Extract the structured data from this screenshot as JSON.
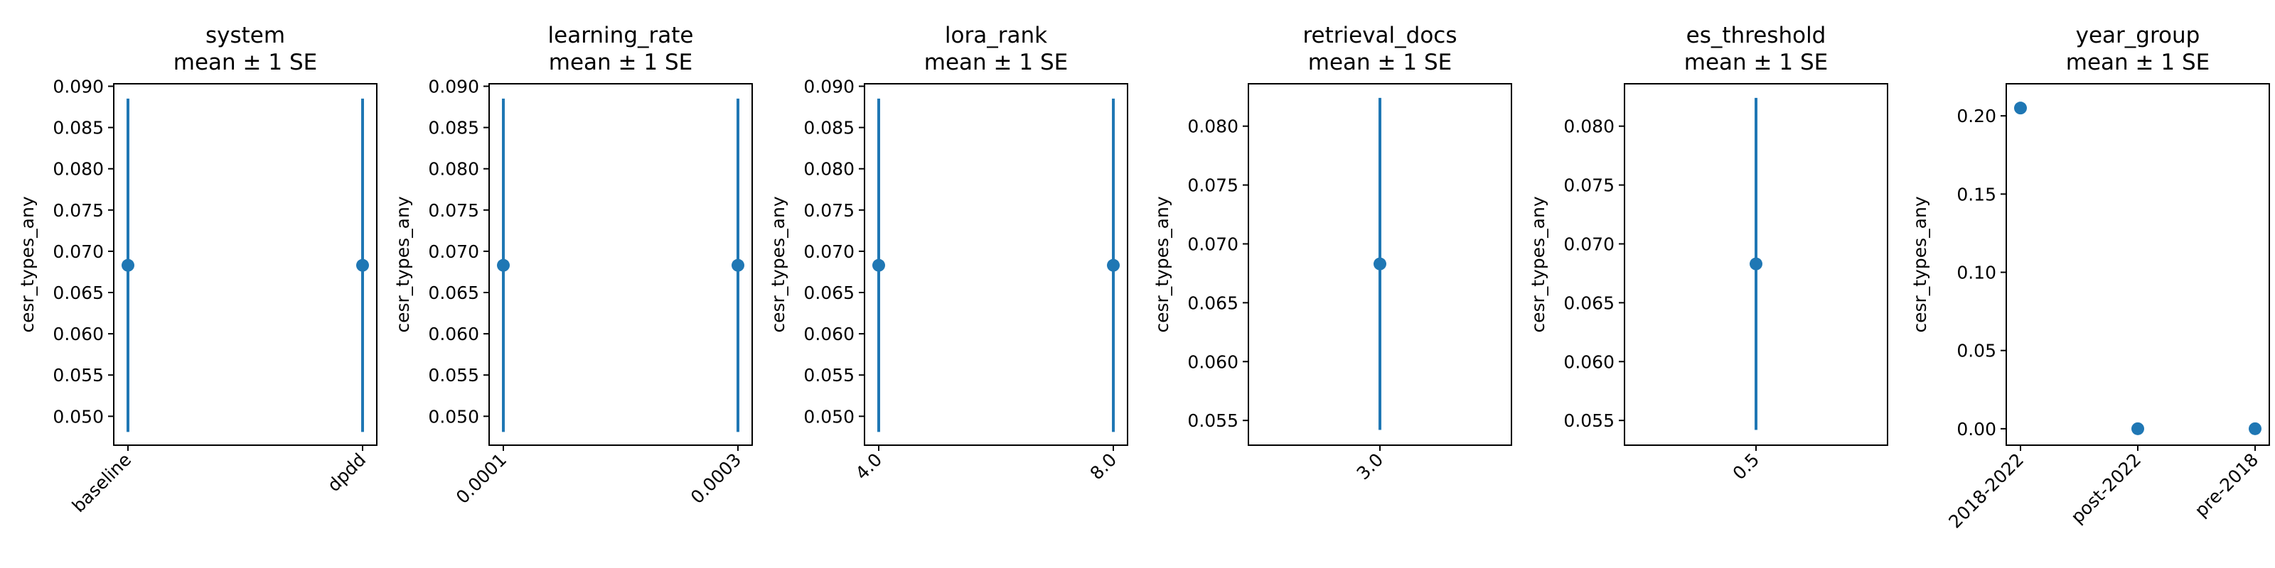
{
  "colors": {
    "series": "#1f77b4",
    "axis": "#000000",
    "background": "#ffffff"
  },
  "chart_data": [
    {
      "type": "scatter",
      "title": "system\nmean ± 1 SE",
      "xlabel": "",
      "ylabel": "cesr_types_any",
      "categories": [
        "baseline",
        "dpdd"
      ],
      "values": [
        0.0683,
        0.0683
      ],
      "error": [
        0.0202,
        0.0202
      ],
      "ylim": [
        0.0465,
        0.0903
      ],
      "yticks": [
        0.05,
        0.055,
        0.06,
        0.065,
        0.07,
        0.075,
        0.08,
        0.085,
        0.09
      ],
      "ytick_labels": [
        "0.050",
        "0.055",
        "0.060",
        "0.065",
        "0.070",
        "0.075",
        "0.080",
        "0.085",
        "0.090"
      ],
      "grid": false,
      "legend": "none"
    },
    {
      "type": "scatter",
      "title": "learning_rate\nmean ± 1 SE",
      "xlabel": "",
      "ylabel": "cesr_types_any",
      "categories": [
        "0.0001",
        "0.0003"
      ],
      "values": [
        0.0683,
        0.0683
      ],
      "error": [
        0.0202,
        0.0202
      ],
      "ylim": [
        0.0465,
        0.0903
      ],
      "yticks": [
        0.05,
        0.055,
        0.06,
        0.065,
        0.07,
        0.075,
        0.08,
        0.085,
        0.09
      ],
      "ytick_labels": [
        "0.050",
        "0.055",
        "0.060",
        "0.065",
        "0.070",
        "0.075",
        "0.080",
        "0.085",
        "0.090"
      ],
      "grid": false,
      "legend": "none"
    },
    {
      "type": "scatter",
      "title": "lora_rank\nmean ± 1 SE",
      "xlabel": "",
      "ylabel": "cesr_types_any",
      "categories": [
        "4.0",
        "8.0"
      ],
      "values": [
        0.0683,
        0.0683
      ],
      "error": [
        0.0202,
        0.0202
      ],
      "ylim": [
        0.0465,
        0.0903
      ],
      "yticks": [
        0.05,
        0.055,
        0.06,
        0.065,
        0.07,
        0.075,
        0.08,
        0.085,
        0.09
      ],
      "ytick_labels": [
        "0.050",
        "0.055",
        "0.060",
        "0.065",
        "0.070",
        "0.075",
        "0.080",
        "0.085",
        "0.090"
      ],
      "grid": false,
      "legend": "none"
    },
    {
      "type": "scatter",
      "title": "retrieval_docs\nmean ± 1 SE",
      "xlabel": "",
      "ylabel": "cesr_types_any",
      "categories": [
        "3.0"
      ],
      "values": [
        0.0683
      ],
      "error": [
        0.0141
      ],
      "ylim": [
        0.0529,
        0.0836
      ],
      "yticks": [
        0.055,
        0.06,
        0.065,
        0.07,
        0.075,
        0.08
      ],
      "ytick_labels": [
        "0.055",
        "0.060",
        "0.065",
        "0.070",
        "0.075",
        "0.080"
      ],
      "grid": false,
      "legend": "none"
    },
    {
      "type": "scatter",
      "title": "es_threshold\nmean ± 1 SE",
      "xlabel": "",
      "ylabel": "cesr_types_any",
      "categories": [
        "0.5"
      ],
      "values": [
        0.0683
      ],
      "error": [
        0.0141
      ],
      "ylim": [
        0.0529,
        0.0836
      ],
      "yticks": [
        0.055,
        0.06,
        0.065,
        0.07,
        0.075,
        0.08
      ],
      "ytick_labels": [
        "0.055",
        "0.060",
        "0.065",
        "0.070",
        "0.075",
        "0.080"
      ],
      "grid": false,
      "legend": "none"
    },
    {
      "type": "scatter",
      "title": "year_group\nmean ± 1 SE",
      "xlabel": "",
      "ylabel": "cesr_types_any",
      "categories": [
        "2018-2022",
        "post-2022",
        "pre-2018"
      ],
      "values": [
        0.205,
        0.0,
        0.0
      ],
      "error": [
        0,
        0,
        0
      ],
      "ylim": [
        -0.0105,
        0.2205
      ],
      "yticks": [
        0.0,
        0.05,
        0.1,
        0.15,
        0.2
      ],
      "ytick_labels": [
        "0.00",
        "0.05",
        "0.10",
        "0.15",
        "0.20"
      ],
      "grid": false,
      "legend": "none"
    }
  ]
}
